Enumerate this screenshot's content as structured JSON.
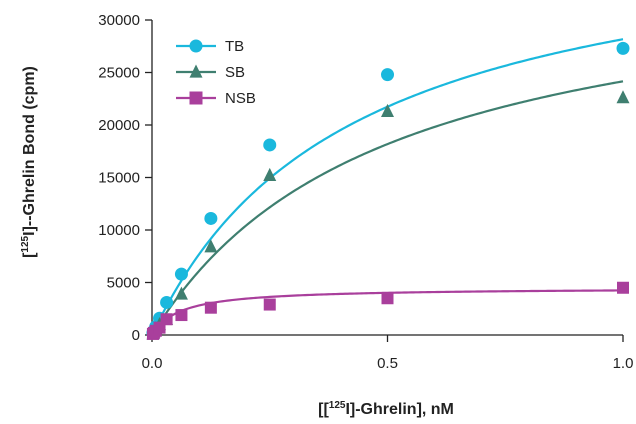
{
  "chart_data": {
    "type": "scatter",
    "xlabel": {
      "prefix": "[[",
      "sup": "125",
      "suffix": "I]-Ghrelin], nM"
    },
    "ylabel": {
      "prefix": "[",
      "sup": "125",
      "suffix": "I]--Ghrelin Bond (cpm)"
    },
    "xlim": [
      0,
      1.0
    ],
    "ylim": [
      0,
      30000
    ],
    "x_ticks": [
      0.0,
      0.5,
      1.0
    ],
    "x_tick_labels": [
      "0.0",
      "0.5",
      "1.0"
    ],
    "y_ticks": [
      0,
      5000,
      10000,
      15000,
      20000,
      25000,
      30000
    ],
    "y_tick_labels": [
      "0",
      "5000",
      "10000",
      "15000",
      "20000",
      "25000",
      "30000"
    ],
    "grid": false,
    "legend_position": "top-left",
    "series": [
      {
        "name": "TB",
        "marker": "circle",
        "color": "#1ab8dd",
        "x": [
          0.002,
          0.004,
          0.008,
          0.016,
          0.031,
          0.0625,
          0.125,
          0.25,
          0.5,
          1.0
        ],
        "y": [
          200,
          400,
          800,
          1600,
          3100,
          5800,
          11100,
          18100,
          24800,
          27300
        ],
        "fit": {
          "Bmax": 40000,
          "Kd": 0.42
        }
      },
      {
        "name": "SB",
        "marker": "triangle",
        "color": "#3f7f70",
        "x": [
          0.002,
          0.004,
          0.008,
          0.016,
          0.031,
          0.0625,
          0.125,
          0.25,
          0.5,
          1.0
        ],
        "y": [
          100,
          300,
          600,
          1000,
          1500,
          3900,
          8400,
          15200,
          21300,
          22600
        ],
        "fit": {
          "Bmax": 36000,
          "Kd": 0.49
        }
      },
      {
        "name": "NSB",
        "marker": "square",
        "color": "#a93f9c",
        "x": [
          0.002,
          0.004,
          0.008,
          0.016,
          0.031,
          0.0625,
          0.125,
          0.25,
          0.5,
          1.0
        ],
        "y": [
          100,
          200,
          400,
          700,
          1500,
          1900,
          2600,
          2900,
          3500,
          4500
        ],
        "fit": {
          "Bmax": 4500,
          "Kd": 0.06
        }
      }
    ]
  }
}
